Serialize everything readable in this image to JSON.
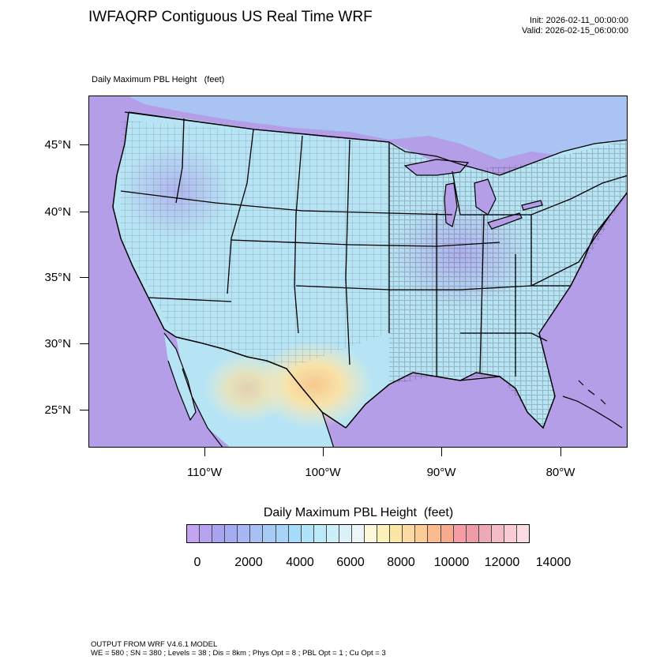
{
  "title": "IWFAQRP Contiguous US Real Time WRF",
  "init_line": "Init: 2026-02-11_00:00:00",
  "valid_line": "Valid: 2026-02-15_06:00:00",
  "subtitle": "Daily Maximum PBL Height   (feet)",
  "map": {
    "lat_labels": [
      "45°N",
      "40°N",
      "35°N",
      "30°N",
      "25°N"
    ],
    "lon_labels": [
      "110°W",
      "100°W",
      "90°W",
      "80°W"
    ],
    "colors": {
      "ocean": "#b49ee8",
      "land_low": "#a9c4f2",
      "land_mid": "#b7e4f4",
      "land_high": "#f6eec0",
      "land_peak": "#f6cf97",
      "state_line": "#000000",
      "county_line": "#333333"
    }
  },
  "colorbar": {
    "title": "Daily Maximum PBL Height  (feet)",
    "labels": [
      "0",
      "2000",
      "4000",
      "6000",
      "8000",
      "10000",
      "12000",
      "14000"
    ],
    "colors": [
      "#c4a4f2",
      "#b6a2f0",
      "#a9a4f2",
      "#a5acf2",
      "#a8b6f2",
      "#a8c0f4",
      "#a8cbf6",
      "#a6d3f7",
      "#a4dcf9",
      "#aee3f8",
      "#bce9f8",
      "#cbeef8",
      "#dcf2f8",
      "#ecf6f8",
      "#fdf8da",
      "#fbf0b8",
      "#fbe6a6",
      "#fbd9a0",
      "#fbcc96",
      "#fbbb8e",
      "#f8aa8c",
      "#f59ca4",
      "#ee9ca8",
      "#eeaab4",
      "#f4bcc4",
      "#f8ccd2",
      "#fadde2"
    ]
  },
  "footer": {
    "line1": "OUTPUT FROM WRF V4.6.1 MODEL",
    "line2": "WE = 580 ; SN = 380 ; Levels = 38 ; Dis = 8km ; Phys Opt = 8 ; PBL Opt = 1 ; Cu Opt = 3"
  }
}
